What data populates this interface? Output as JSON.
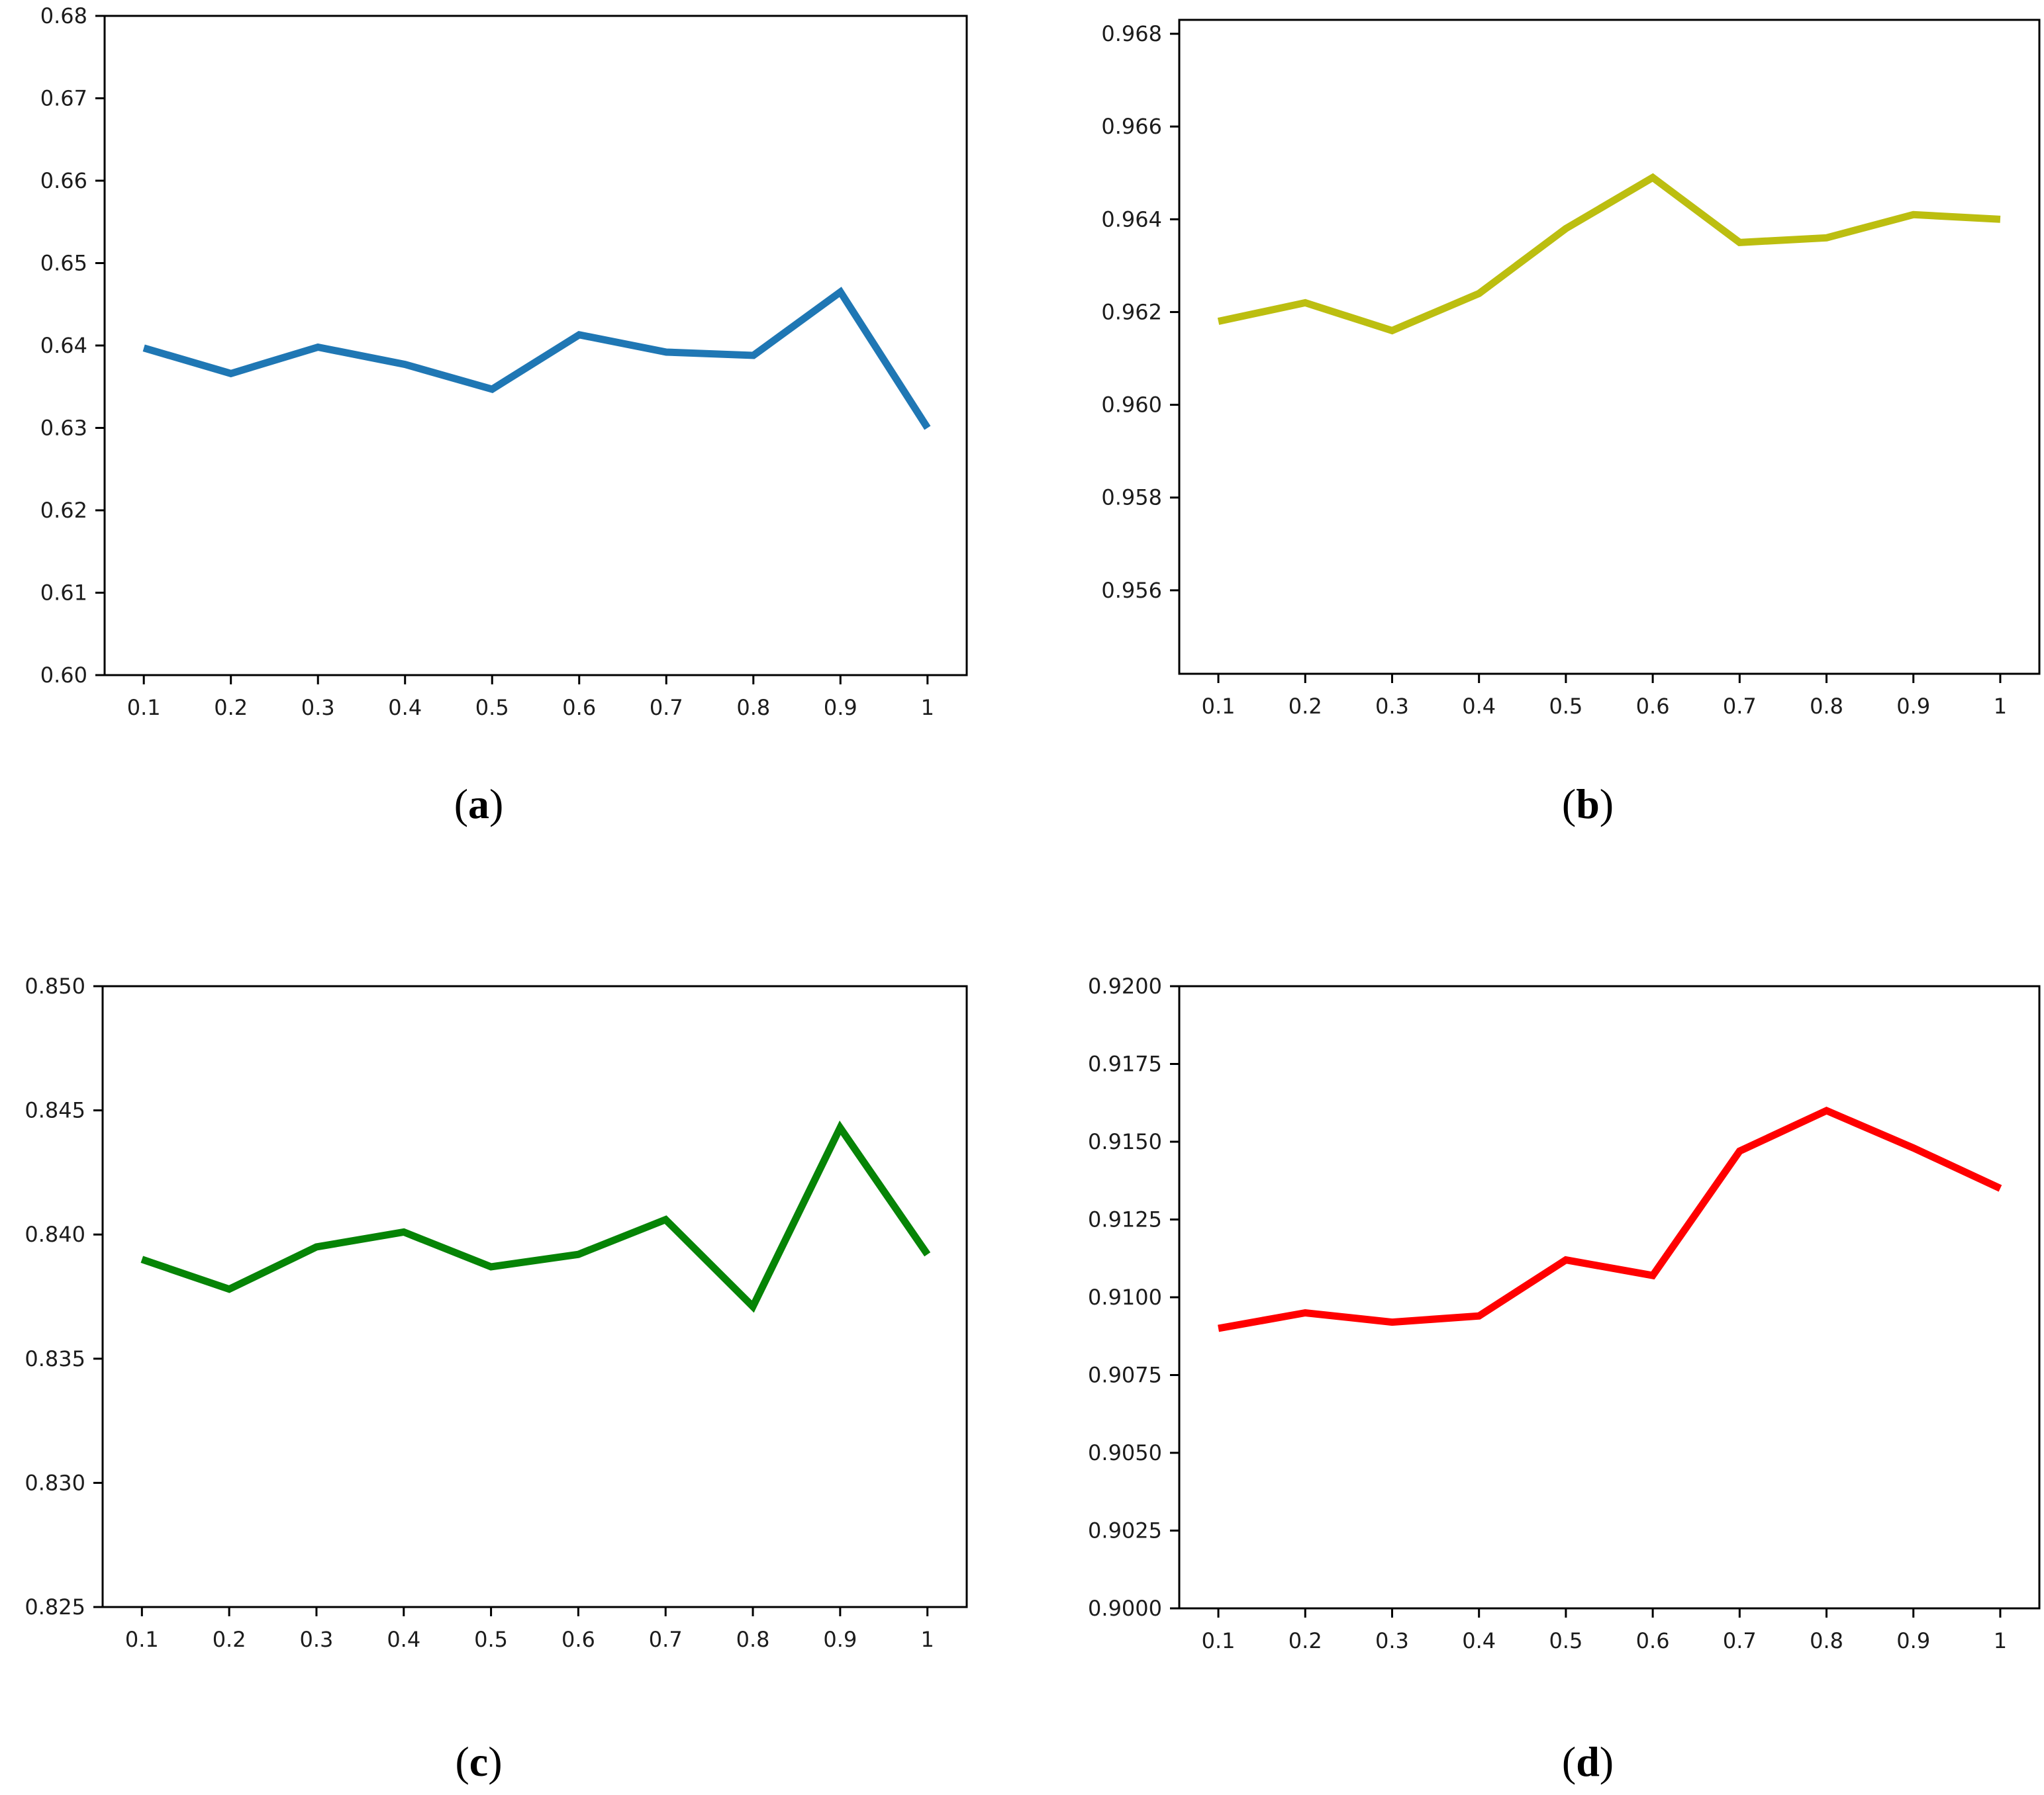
{
  "page": {
    "background": "#ffffff",
    "axis_color": "#000000",
    "tick_label_color": "#1c1c1c"
  },
  "chart_data": [
    {
      "id": "a",
      "type": "line",
      "caption": {
        "open": "(",
        "letter": "a",
        "close": ")"
      },
      "line_color": "#1f77b4",
      "line_width": 11,
      "x": [
        0.1,
        0.2,
        0.3,
        0.4,
        0.5,
        0.6,
        0.7,
        0.8,
        0.9,
        1.0
      ],
      "y": [
        0.6397,
        0.6366,
        0.6398,
        0.6377,
        0.6347,
        0.6413,
        0.6392,
        0.6388,
        0.6465,
        0.63
      ],
      "xlim": [
        0.055,
        1.045
      ],
      "ylim": [
        0.6,
        0.68
      ],
      "xticks": [
        0.1,
        0.2,
        0.3,
        0.4,
        0.5,
        0.6,
        0.7,
        0.8,
        0.9,
        1.0
      ],
      "xtick_labels": [
        "0.1",
        "0.2",
        "0.3",
        "0.4",
        "0.5",
        "0.6",
        "0.7",
        "0.8",
        "0.9",
        "1"
      ],
      "yticks": [
        0.6,
        0.61,
        0.62,
        0.63,
        0.64,
        0.65,
        0.66,
        0.67,
        0.68
      ],
      "ytick_labels": [
        "0.60",
        "0.61",
        "0.62",
        "0.63",
        "0.64",
        "0.65",
        "0.66",
        "0.67",
        "0.68"
      ],
      "grid": false,
      "title": "",
      "xlabel": "",
      "ylabel": ""
    },
    {
      "id": "b",
      "type": "line",
      "caption": {
        "open": "(",
        "letter": "b",
        "close": ")"
      },
      "line_color": "#bcbe10",
      "line_width": 11,
      "x": [
        0.1,
        0.2,
        0.3,
        0.4,
        0.5,
        0.6,
        0.7,
        0.8,
        0.9,
        1.0
      ],
      "y": [
        0.9618,
        0.9622,
        0.9616,
        0.9624,
        0.9638,
        0.9649,
        0.9635,
        0.9636,
        0.9641,
        0.964
      ],
      "xlim": [
        0.055,
        1.045
      ],
      "ylim": [
        0.9542,
        0.9683
      ],
      "xticks": [
        0.1,
        0.2,
        0.3,
        0.4,
        0.5,
        0.6,
        0.7,
        0.8,
        0.9,
        1.0
      ],
      "xtick_labels": [
        "0.1",
        "0.2",
        "0.3",
        "0.4",
        "0.5",
        "0.6",
        "0.7",
        "0.8",
        "0.9",
        "1"
      ],
      "yticks": [
        0.956,
        0.958,
        0.96,
        0.962,
        0.964,
        0.966,
        0.968
      ],
      "ytick_labels": [
        "0.956",
        "0.958",
        "0.960",
        "0.962",
        "0.964",
        "0.966",
        "0.968"
      ],
      "grid": false,
      "title": "",
      "xlabel": "",
      "ylabel": ""
    },
    {
      "id": "c",
      "type": "line",
      "caption": {
        "open": "(",
        "letter": "c",
        "close": ")"
      },
      "line_color": "#068406",
      "line_width": 11,
      "x": [
        0.1,
        0.2,
        0.3,
        0.4,
        0.5,
        0.6,
        0.7,
        0.8,
        0.9,
        1.0
      ],
      "y": [
        0.839,
        0.8378,
        0.8395,
        0.8401,
        0.8387,
        0.8392,
        0.8406,
        0.8371,
        0.8443,
        0.8392
      ],
      "xlim": [
        0.055,
        1.045
      ],
      "ylim": [
        0.825,
        0.85
      ],
      "xticks": [
        0.1,
        0.2,
        0.3,
        0.4,
        0.5,
        0.6,
        0.7,
        0.8,
        0.9,
        1.0
      ],
      "xtick_labels": [
        "0.1",
        "0.2",
        "0.3",
        "0.4",
        "0.5",
        "0.6",
        "0.7",
        "0.8",
        "0.9",
        "1"
      ],
      "yticks": [
        0.825,
        0.83,
        0.835,
        0.84,
        0.845,
        0.85
      ],
      "ytick_labels": [
        "0.825",
        "0.830",
        "0.835",
        "0.840",
        "0.845",
        "0.850"
      ],
      "grid": false,
      "title": "",
      "xlabel": "",
      "ylabel": ""
    },
    {
      "id": "d",
      "type": "line",
      "caption": {
        "open": "(",
        "letter": "d",
        "close": ")"
      },
      "line_color": "#ff0000",
      "line_width": 11,
      "x": [
        0.1,
        0.2,
        0.3,
        0.4,
        0.5,
        0.6,
        0.7,
        0.8,
        0.9,
        1.0
      ],
      "y": [
        0.909,
        0.9095,
        0.9092,
        0.9094,
        0.9112,
        0.9107,
        0.9147,
        0.916,
        0.9148,
        0.9135
      ],
      "xlim": [
        0.055,
        1.045
      ],
      "ylim": [
        0.9,
        0.92
      ],
      "xticks": [
        0.1,
        0.2,
        0.3,
        0.4,
        0.5,
        0.6,
        0.7,
        0.8,
        0.9,
        1.0
      ],
      "xtick_labels": [
        "0.1",
        "0.2",
        "0.3",
        "0.4",
        "0.5",
        "0.6",
        "0.7",
        "0.8",
        "0.9",
        "1"
      ],
      "yticks": [
        0.9,
        0.9025,
        0.905,
        0.9075,
        0.91,
        0.9125,
        0.915,
        0.9175,
        0.92
      ],
      "ytick_labels": [
        "0.9000",
        "0.9025",
        "0.9050",
        "0.9075",
        "0.9100",
        "0.9125",
        "0.9150",
        "0.9175",
        "0.9200"
      ],
      "grid": false,
      "title": "",
      "xlabel": "",
      "ylabel": ""
    }
  ]
}
